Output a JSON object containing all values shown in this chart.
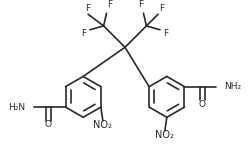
{
  "background_color": "#ffffff",
  "line_color": "#2a2a2a",
  "text_color": "#2a2a2a",
  "line_width": 1.2,
  "font_size": 6.5,
  "figsize": [
    2.5,
    1.63
  ],
  "dpi": 100,
  "xlim": [
    0,
    250
  ],
  "ylim": [
    0,
    163
  ]
}
